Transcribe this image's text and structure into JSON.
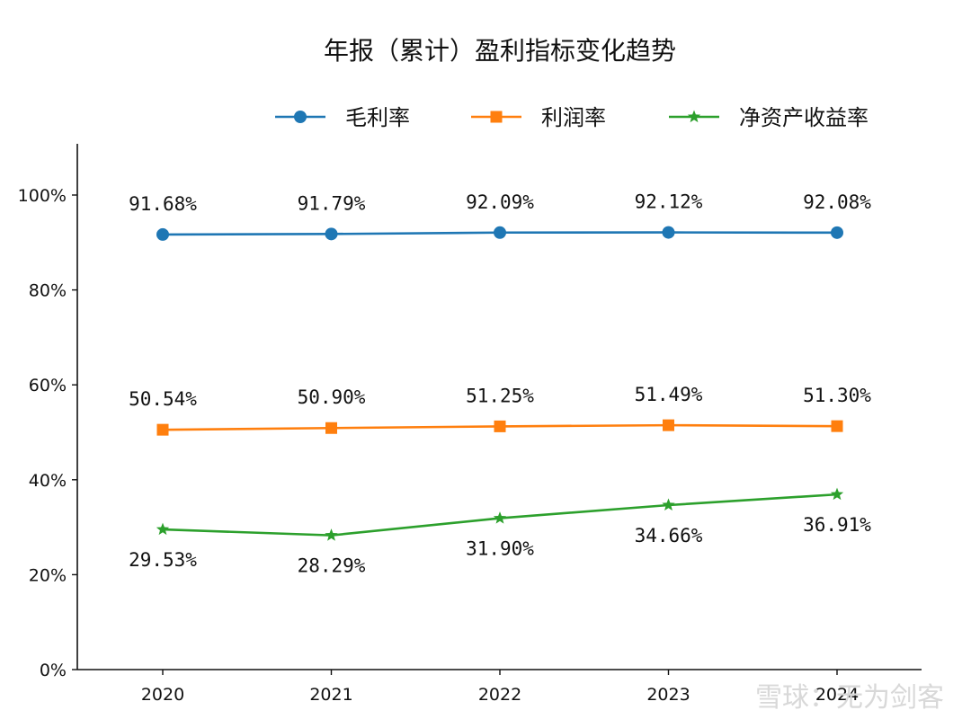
{
  "chart_data": {
    "type": "line",
    "title": "年报（累计）盈利指标变化趋势",
    "xlabel": "",
    "ylabel": "",
    "categories": [
      "2020",
      "2021",
      "2022",
      "2023",
      "2024"
    ],
    "ylim": [
      0,
      110
    ],
    "yticks": [
      0,
      20,
      40,
      60,
      80,
      100
    ],
    "ytick_labels": [
      "0%",
      "20%",
      "40%",
      "60%",
      "80%",
      "100%"
    ],
    "grid": false,
    "legend_position": "top",
    "series": [
      {
        "name": "毛利率",
        "color": "#1f77b4",
        "marker": "circle",
        "values": [
          91.68,
          91.79,
          92.09,
          92.12,
          92.08
        ],
        "labels": [
          "91.68%",
          "91.79%",
          "92.09%",
          "92.12%",
          "92.08%"
        ],
        "label_position": "above"
      },
      {
        "name": "利润率",
        "color": "#ff7f0e",
        "marker": "square",
        "values": [
          50.54,
          50.9,
          51.25,
          51.49,
          51.3
        ],
        "labels": [
          "50.54%",
          "50.90%",
          "51.25%",
          "51.49%",
          "51.30%"
        ],
        "label_position": "above"
      },
      {
        "name": "净资产收益率",
        "color": "#2ca02c",
        "marker": "star",
        "values": [
          29.53,
          28.29,
          31.9,
          34.66,
          36.91
        ],
        "labels": [
          "29.53%",
          "28.29%",
          "31.90%",
          "34.66%",
          "36.91%"
        ],
        "label_position": "below"
      }
    ]
  },
  "watermark": "雪球：无为剑客"
}
